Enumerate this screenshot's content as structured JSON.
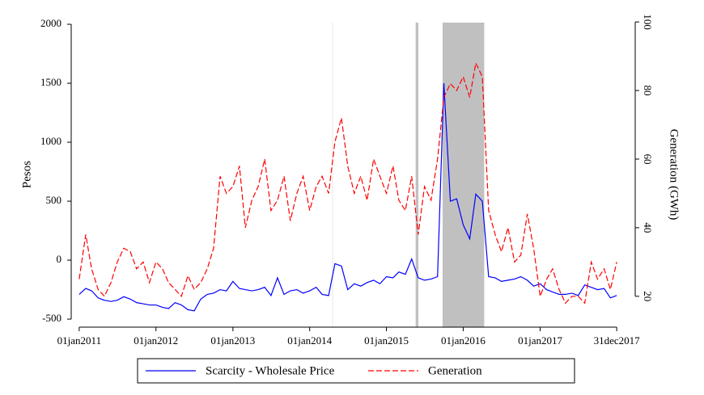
{
  "chart_data": {
    "type": "line",
    "y_label": "Pesos",
    "y2_label": "Generation (GWh)",
    "x": [
      "2011-01-01",
      "2011-02-01",
      "2011-03-01",
      "2011-04-01",
      "2011-05-01",
      "2011-06-01",
      "2011-07-01",
      "2011-08-01",
      "2011-09-01",
      "2011-10-01",
      "2011-11-01",
      "2011-12-01",
      "2012-01-01",
      "2012-02-01",
      "2012-03-01",
      "2012-04-01",
      "2012-05-01",
      "2012-06-01",
      "2012-07-01",
      "2012-08-01",
      "2012-09-01",
      "2012-10-01",
      "2012-11-01",
      "2012-12-01",
      "2013-01-01",
      "2013-02-01",
      "2013-03-01",
      "2013-04-01",
      "2013-05-01",
      "2013-06-01",
      "2013-07-01",
      "2013-08-01",
      "2013-09-01",
      "2013-10-01",
      "2013-11-01",
      "2013-12-01",
      "2014-01-01",
      "2014-02-01",
      "2014-03-01",
      "2014-04-01",
      "2014-05-01",
      "2014-06-01",
      "2014-07-01",
      "2014-08-01",
      "2014-09-01",
      "2014-10-01",
      "2014-11-01",
      "2014-12-01",
      "2015-01-01",
      "2015-02-01",
      "2015-03-01",
      "2015-04-01",
      "2015-05-01",
      "2015-06-01",
      "2015-07-01",
      "2015-08-01",
      "2015-09-01",
      "2015-10-01",
      "2015-11-01",
      "2015-12-01",
      "2016-01-01",
      "2016-02-01",
      "2016-03-01",
      "2016-04-01",
      "2016-05-01",
      "2016-06-01",
      "2016-07-01",
      "2016-08-01",
      "2016-09-01",
      "2016-10-01",
      "2016-11-01",
      "2016-12-01",
      "2017-01-01",
      "2017-02-01",
      "2017-03-01",
      "2017-04-01",
      "2017-05-01",
      "2017-06-01",
      "2017-07-01",
      "2017-08-01",
      "2017-09-01",
      "2017-10-01",
      "2017-11-01",
      "2017-12-01",
      "2017-12-31"
    ],
    "series": [
      {
        "name": "Scarcity - Wholesale Price",
        "color": "#0000ff",
        "dash": false,
        "values": [
          -290,
          -240,
          -260,
          -320,
          -340,
          -350,
          -340,
          -310,
          -330,
          -360,
          -370,
          -380,
          -380,
          -400,
          -410,
          -360,
          -380,
          -420,
          -430,
          -330,
          -290,
          -280,
          -250,
          -260,
          -180,
          -240,
          -250,
          -260,
          -250,
          -230,
          -300,
          -150,
          -290,
          -260,
          -250,
          -280,
          -260,
          -230,
          -290,
          -300,
          -30,
          -50,
          -250,
          -200,
          -220,
          -190,
          -170,
          -200,
          -140,
          -150,
          -100,
          -120,
          10,
          -150,
          -170,
          -160,
          -140,
          1500,
          500,
          520,
          300,
          180,
          560,
          500,
          -140,
          -150,
          -180,
          -170,
          -160,
          -140,
          -170,
          -220,
          -200,
          -250,
          -270,
          -290,
          -290,
          -280,
          -300,
          -210,
          -230,
          -250,
          -240,
          -320,
          -300
        ]
      },
      {
        "name": "Generation",
        "color": "#ff0000",
        "dash": true,
        "axis": "y2",
        "values": [
          25,
          38,
          28,
          22,
          20,
          24,
          30,
          34,
          33,
          28,
          30,
          24,
          30,
          28,
          24,
          22,
          20,
          26,
          22,
          24,
          28,
          34,
          55,
          50,
          52,
          58,
          40,
          48,
          52,
          60,
          45,
          48,
          55,
          42,
          50,
          55,
          45,
          52,
          55,
          50,
          65,
          72,
          58,
          50,
          55,
          48,
          60,
          55,
          50,
          58,
          48,
          45,
          55,
          38,
          52,
          48,
          60,
          78,
          82,
          80,
          84,
          78,
          88,
          84,
          45,
          38,
          33,
          40,
          30,
          32,
          44,
          34,
          20,
          25,
          28,
          22,
          18,
          20,
          20,
          18,
          30,
          25,
          28,
          22,
          30
        ]
      }
    ],
    "shaded_regions": [
      {
        "start": "2014-04-18",
        "end": "2014-04-22",
        "color": "#e8e8e8"
      },
      {
        "start": "2015-05-20",
        "end": "2015-06-02",
        "color": "#c0c0c0"
      },
      {
        "start": "2015-09-25",
        "end": "2016-04-10",
        "color": "#c0c0c0"
      }
    ],
    "xlim": [
      "2010-11-24",
      "2018-03-29"
    ],
    "xticks": [
      {
        "value": "2011-01-01",
        "label": "01jan2011"
      },
      {
        "value": "2012-01-01",
        "label": "01jan2012"
      },
      {
        "value": "2013-01-01",
        "label": "01jan2013"
      },
      {
        "value": "2014-01-01",
        "label": "01jan2014"
      },
      {
        "value": "2015-01-01",
        "label": "01jan2015"
      },
      {
        "value": "2016-01-01",
        "label": "01jan2016"
      },
      {
        "value": "2017-01-01",
        "label": "01jan2017"
      },
      {
        "value": "2017-12-31",
        "label": "31dec2017"
      }
    ],
    "ylim": [
      -568,
      2014
    ],
    "yticks": [
      -500,
      0,
      500,
      1000,
      1500,
      2000
    ],
    "y2lim": [
      11,
      99.8
    ],
    "y2ticks": [
      20,
      40,
      60,
      80,
      100
    ],
    "legend": "bottom"
  }
}
